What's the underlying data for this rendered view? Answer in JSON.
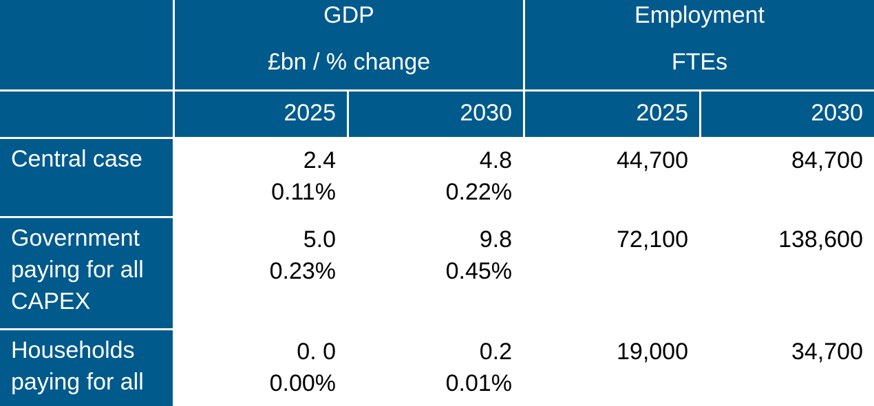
{
  "header": {
    "gdp_title": "GDP",
    "gdp_unit": "£bn / % change",
    "employment_title": "Employment",
    "employment_unit": "FTEs"
  },
  "years": [
    "2025",
    "2030",
    "2025",
    "2030"
  ],
  "rows": [
    {
      "label": "Central case",
      "gdp_2025": "2.4\n0.11%",
      "gdp_2030": "4.8\n0.22%",
      "emp_2025": "44,700",
      "emp_2030": "84,700"
    },
    {
      "label": "Government\npaying for all\nCAPEX",
      "gdp_2025": "5.0\n0.23%",
      "gdp_2030": "9.8\n0.45%",
      "emp_2025": "72,100",
      "emp_2030": "138,600"
    },
    {
      "label": "Households\npaying for all",
      "gdp_2025": "0. 0\n0.00%",
      "gdp_2030": "0.2\n0.01%",
      "emp_2025": "19,000",
      "emp_2030": "34,700"
    }
  ],
  "colors": {
    "header_bg": "#005a8c",
    "header_text": "#ffffff",
    "body_bg": "#ffffff",
    "body_text": "#000000"
  }
}
